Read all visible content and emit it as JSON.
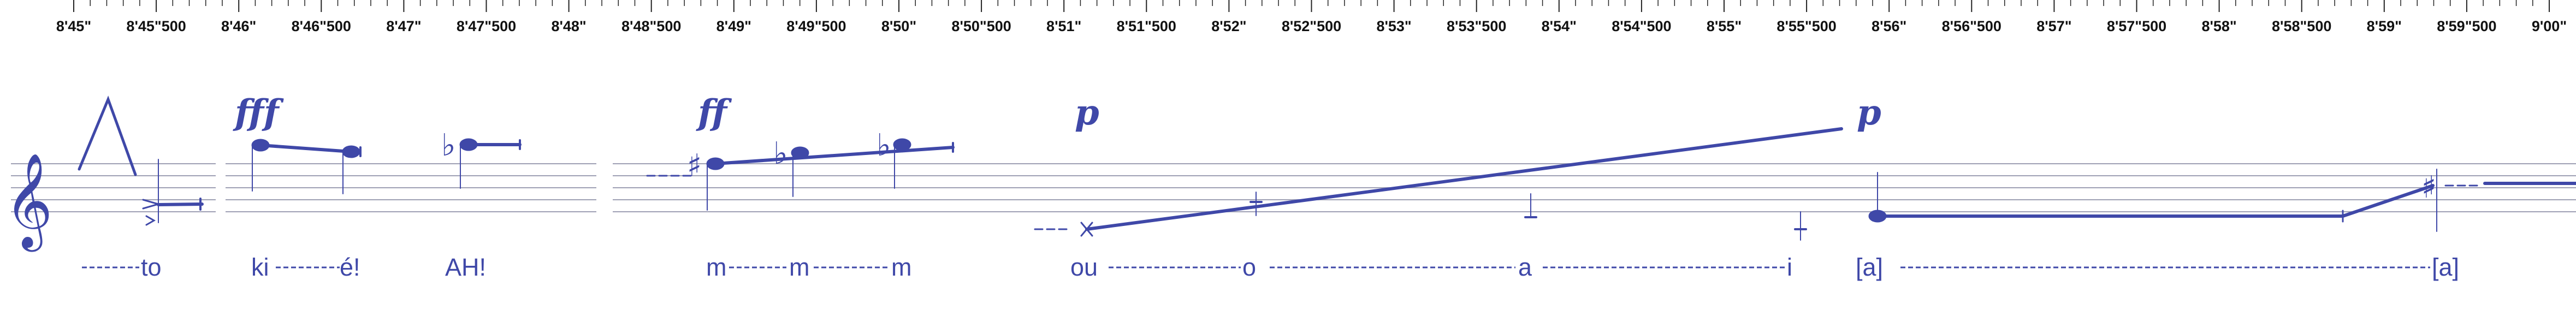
{
  "ruler": {
    "labels": [
      "8'45\"",
      "8'45\"500",
      "8'46\"",
      "8'46\"500",
      "8'47\"",
      "8'47\"500",
      "8'48\"",
      "8'48\"500",
      "8'49\"",
      "8'49\"500",
      "8'50\"",
      "8'50\"500",
      "8'51\"",
      "8'51\"500",
      "8'52\"",
      "8'52\"500",
      "8'53\"",
      "8'53\"500",
      "8'54\"",
      "8'54\"500",
      "8'55\"",
      "8'55\"500",
      "8'56\"",
      "8'56\"500",
      "8'57\"",
      "8'57\"500",
      "8'58\"",
      "8'58\"500",
      "8'59\"",
      "8'59\"500",
      "9'00\""
    ]
  },
  "colors": {
    "ink": "#3f48a8",
    "staff": "#9ea0b4",
    "ruler": "#222222"
  },
  "clef": {
    "icon": "treble-clef-icon",
    "glyph": "𝄞"
  },
  "dynamics": {
    "d1": "fff",
    "d2": "ff",
    "d3": "p",
    "d4": "p"
  },
  "accidentals": {
    "flat": "♭",
    "sharp": "♯"
  },
  "lyrics": {
    "to": "to",
    "ki": "ki",
    "e": "é!",
    "ah": "AH!",
    "m1": "m",
    "m2": "m",
    "m3": "m",
    "ou": "ou",
    "o": "o",
    "a": "a",
    "i": "i",
    "bracket_a1": "[a]",
    "bracket_a2": "[a]"
  }
}
